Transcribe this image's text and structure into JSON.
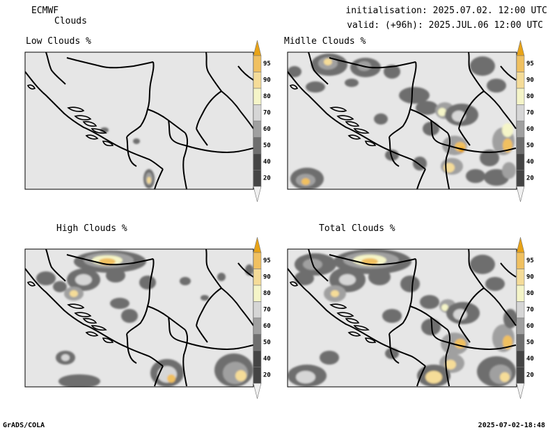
{
  "header": {
    "model": "ECMWF",
    "product": "Clouds",
    "initialisation": "initialisation: 2025.07.02. 12:00 UTC",
    "valid": "valid: (+96h): 2025.JUL.06 12:00 UTC"
  },
  "footer": {
    "software": "GrADS/COLA",
    "generated": "2025-07-02-18:48"
  },
  "panels": [
    {
      "id": "low",
      "title": "Low Clouds %"
    },
    {
      "id": "middle",
      "title": "Midlle Clouds %"
    },
    {
      "id": "high",
      "title": "High Clouds %"
    },
    {
      "id": "total",
      "title": "Total Clouds %"
    }
  ],
  "colorbar": {
    "levels": [
      "95",
      "90",
      "80",
      "70",
      "60",
      "50",
      "40",
      "20"
    ],
    "colors": [
      "#e8a317",
      "#f0c060",
      "#f5dc98",
      "#f5f5c8",
      "#d6d6d6",
      "#a0a0a0",
      "#6e6e6e",
      "#444444",
      "#f0f0f0"
    ]
  },
  "colors": {
    "map_background": "#e6e6e6",
    "border": "#000000"
  }
}
